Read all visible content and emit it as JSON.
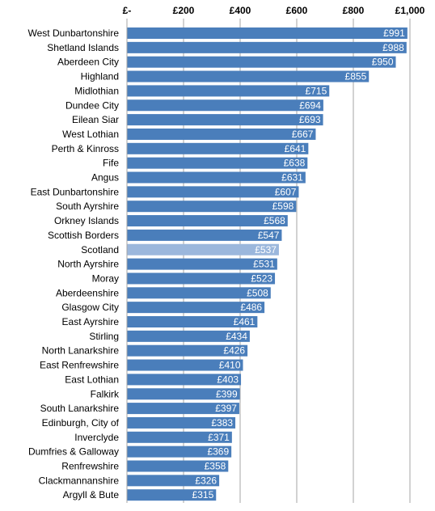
{
  "chart_data": {
    "type": "bar",
    "orientation": "horizontal",
    "x_ticks": [
      "£-",
      "£200",
      "£400",
      "£600",
      "£800",
      "£1,000"
    ],
    "xlim": [
      0,
      1000
    ],
    "grid": "vertical",
    "axis_position": "top",
    "colors": {
      "bar": "#4a7ebb",
      "highlight": "#9bb7dc",
      "grid": "#a6a6a6",
      "value_text": "#ffffff"
    },
    "highlight": "Scotland",
    "categories": [
      "West Dunbartonshire",
      "Shetland Islands",
      "Aberdeen City",
      "Highland",
      "Midlothian",
      "Dundee City",
      "Eilean Siar",
      "West Lothian",
      "Perth & Kinross",
      "Fife",
      "Angus",
      "East Dunbartonshire",
      "South Ayrshire",
      "Orkney Islands",
      "Scottish Borders",
      "Scotland",
      "North Ayrshire",
      "Moray",
      "Aberdeenshire",
      "Glasgow City",
      "East Ayrshire",
      "Stirling",
      "North Lanarkshire",
      "East Renfrewshire",
      "East Lothian",
      "Falkirk",
      "South Lanarkshire",
      "Edinburgh, City of",
      "Inverclyde",
      "Dumfries & Galloway",
      "Renfrewshire",
      "Clackmannanshire",
      "Argyll & Bute"
    ],
    "values": [
      991,
      988,
      950,
      855,
      715,
      694,
      693,
      667,
      641,
      638,
      631,
      607,
      598,
      568,
      547,
      537,
      531,
      523,
      508,
      486,
      461,
      434,
      426,
      410,
      403,
      399,
      397,
      383,
      371,
      369,
      358,
      326,
      315
    ],
    "value_labels": [
      "£991",
      "£988",
      "£950",
      "£855",
      "£715",
      "£694",
      "£693",
      "£667",
      "£641",
      "£638",
      "£631",
      "£607",
      "£598",
      "£568",
      "£547",
      "£537",
      "£531",
      "£523",
      "£508",
      "£486",
      "£461",
      "£434",
      "£426",
      "£410",
      "£403",
      "£399",
      "£397",
      "£383",
      "£371",
      "£369",
      "£358",
      "£326",
      "£315"
    ]
  }
}
